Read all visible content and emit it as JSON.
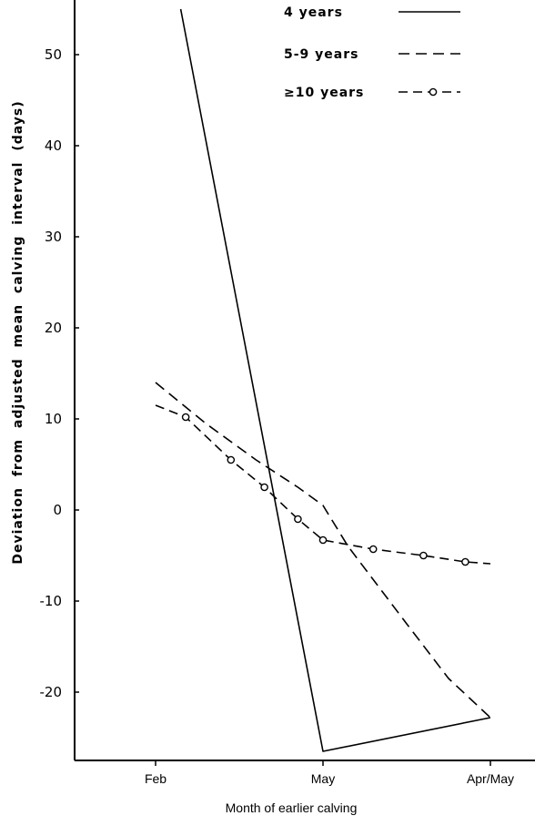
{
  "chart_data": {
    "type": "line",
    "xlabel": "Month of earlier calving",
    "ylabel": "Deviation from adjusted mean calving interval (days)",
    "x_ticks": [
      "Feb",
      "May",
      "Apr/May"
    ],
    "y_ticks": [
      50,
      40,
      30,
      20,
      10,
      0,
      -10,
      -20
    ],
    "y_tick_labels": [
      "50",
      "40",
      "30",
      "20",
      "10",
      "0",
      "-10",
      "-20"
    ],
    "xlim": [
      0,
      4
    ],
    "ylim": [
      -28,
      55
    ],
    "grid": false,
    "legend_position": "top-right",
    "series": [
      {
        "name": "4 years",
        "style": "solid",
        "points": [
          [
            0.15,
            55.0
          ],
          [
            1.0,
            -26.5
          ],
          [
            2.0,
            -22.8
          ]
        ]
      },
      {
        "name": "5-9 years",
        "style": "dashed",
        "points": [
          [
            0.0,
            14.0
          ],
          [
            0.3,
            9.5
          ],
          [
            0.6,
            5.5
          ],
          [
            0.85,
            2.5
          ],
          [
            1.0,
            0.5
          ],
          [
            1.15,
            -4.0
          ],
          [
            1.5,
            -12.5
          ],
          [
            1.75,
            -18.5
          ],
          [
            2.0,
            -22.8
          ]
        ]
      },
      {
        "name": "≥10 years",
        "style": "dash-circle",
        "points": [
          [
            0.0,
            11.5
          ],
          [
            0.18,
            10.2
          ],
          [
            0.45,
            5.5
          ],
          [
            0.65,
            2.5
          ],
          [
            0.85,
            -1.0
          ],
          [
            1.0,
            -3.3
          ],
          [
            1.3,
            -4.3
          ],
          [
            1.6,
            -5.0
          ],
          [
            1.85,
            -5.7
          ],
          [
            2.0,
            -5.9
          ]
        ]
      }
    ],
    "marker_points": [
      [
        0.18,
        10.2
      ],
      [
        0.45,
        5.5
      ],
      [
        0.65,
        2.5
      ],
      [
        0.85,
        -1.0
      ],
      [
        1.0,
        -3.3
      ],
      [
        1.3,
        -4.3
      ],
      [
        1.6,
        -5.0
      ],
      [
        1.85,
        -5.7
      ]
    ]
  }
}
